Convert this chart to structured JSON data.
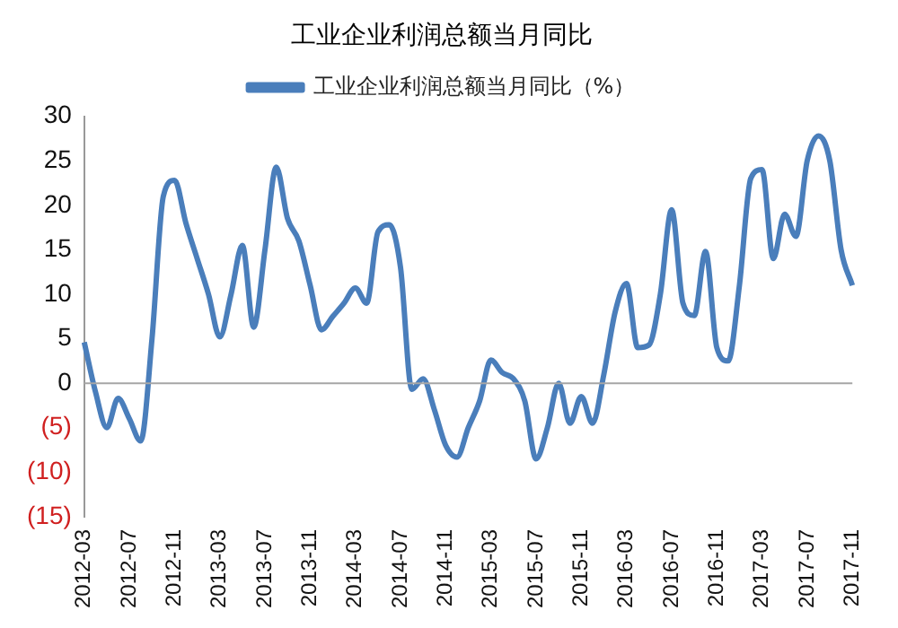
{
  "chart_data": {
    "type": "line",
    "title": "工业企业利润总额当月同比",
    "categories": [
      "2012-03",
      null,
      null,
      null,
      "2012-07",
      null,
      null,
      null,
      "2012-11",
      null,
      null,
      null,
      "2013-03",
      null,
      null,
      null,
      "2013-07",
      null,
      null,
      null,
      "2013-11",
      null,
      null,
      null,
      "2014-03",
      null,
      null,
      null,
      "2014-07",
      null,
      null,
      null,
      "2014-11",
      null,
      null,
      null,
      "2015-03",
      null,
      null,
      null,
      "2015-07",
      null,
      null,
      null,
      "2015-11",
      null,
      null,
      null,
      "2016-03",
      null,
      null,
      null,
      "2016-07",
      null,
      null,
      null,
      "2016-11",
      null,
      null,
      null,
      "2017-03",
      null,
      null,
      null,
      "2017-07",
      null,
      null,
      null,
      "2017-11"
    ],
    "series": [
      {
        "name": "工业企业利润总额当月同比（%）",
        "color": "#4a7ebb",
        "values": [
          4.6,
          -1,
          -5,
          -1.7,
          -4,
          -6.5,
          5,
          21,
          22.8,
          18,
          14,
          10,
          5.2,
          10,
          15.5,
          6.3,
          15,
          24.3,
          18.5,
          16,
          11,
          6,
          7.5,
          9,
          10.7,
          9,
          17,
          17.8,
          13,
          -0.7,
          0.5,
          -3,
          -7,
          -8.3,
          -5,
          -2,
          2.6,
          1.2,
          0.5,
          -2,
          -8.5,
          -5,
          0,
          -4.5,
          -1.5,
          -4.5,
          1,
          8,
          11.2,
          4,
          4.3,
          10,
          19.5,
          9,
          7.6,
          14.8,
          4,
          2.5,
          11,
          23,
          24,
          14,
          19,
          16.5,
          25,
          27.8,
          25,
          15,
          11
        ]
      }
    ],
    "ylim": [
      -15,
      30
    ],
    "yticks": [
      {
        "value": -15,
        "label": "(15)"
      },
      {
        "value": -10,
        "label": "(10)"
      },
      {
        "value": -5,
        "label": "(5)"
      },
      0,
      5,
      10,
      15,
      20,
      25,
      30
    ],
    "ref_lines": [
      {
        "axis": "y",
        "value": 0,
        "color": "#a6a6a6"
      }
    ],
    "grid": false,
    "legend": "top",
    "marker": "none",
    "line_style": "solid"
  }
}
